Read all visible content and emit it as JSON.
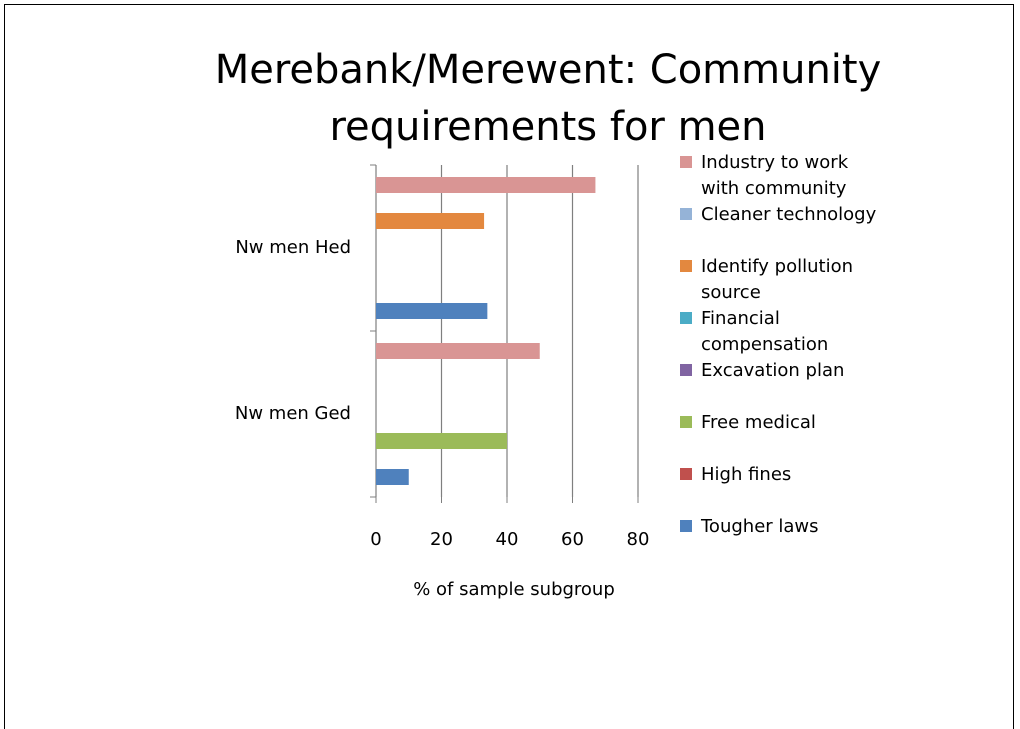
{
  "chart_data": {
    "type": "bar",
    "orientation": "horizontal",
    "title": "Merebank/Merewent: Community requirements for men",
    "xlabel": "% of sample subgroup",
    "categories": [
      "Nw men Hed",
      "Nw men Ged"
    ],
    "series": [
      {
        "name": "Industry to work with community",
        "color": "#d99594",
        "values": [
          67,
          50
        ]
      },
      {
        "name": "Cleaner technology",
        "color": "#95b3d7",
        "values": [
          0,
          0
        ]
      },
      {
        "name": "Identify pollution source",
        "color": "#e3883f",
        "values": [
          33,
          0
        ]
      },
      {
        "name": "Financial compensation",
        "color": "#4bacc6",
        "values": [
          0,
          0
        ]
      },
      {
        "name": "Excavation plan",
        "color": "#8064a2",
        "values": [
          0,
          0
        ]
      },
      {
        "name": "Free medical",
        "color": "#9bbb59",
        "values": [
          0,
          40
        ]
      },
      {
        "name": "High fines",
        "color": "#c0504d",
        "values": [
          0,
          0
        ]
      },
      {
        "name": "Tougher laws",
        "color": "#4f81bd",
        "values": [
          34,
          10
        ]
      }
    ],
    "xlim": [
      0,
      80
    ],
    "xticks": [
      0,
      20,
      40,
      60,
      80
    ],
    "grid": true,
    "legend": "right"
  }
}
